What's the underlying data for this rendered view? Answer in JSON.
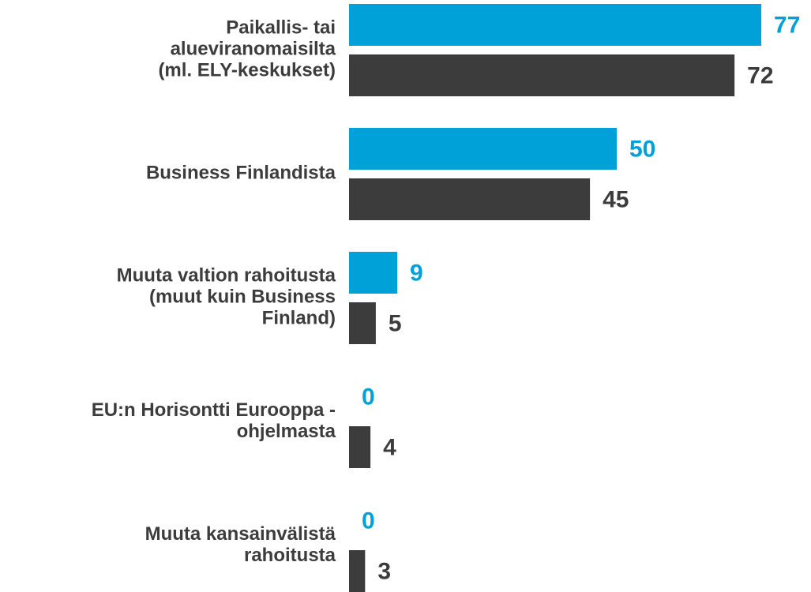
{
  "chart_data": {
    "type": "bar",
    "categories": [
      "Paikallis- tai\nalueviranomaisilta\n(ml. ELY-keskukset)",
      "Business Finlandista",
      "Muuta valtion rahoitusta\n(muut kuin Business\nFinland)",
      "EU:n Horisontti Eurooppa -\nohjelmasta",
      "Muuta kansainvälistä\nrahoitusta"
    ],
    "series": [
      {
        "color": "#00a0d8",
        "values": [
          77,
          50,
          9,
          0,
          0
        ]
      },
      {
        "color": "#3c3c3c",
        "values": [
          72,
          45,
          5,
          4,
          3
        ]
      }
    ]
  }
}
